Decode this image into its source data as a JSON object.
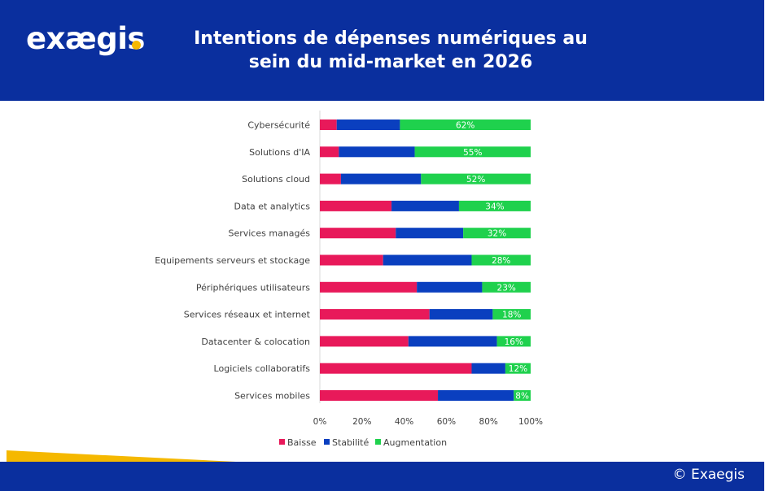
{
  "brand": {
    "logo_text": "exægis",
    "dot_color": "#f5b800"
  },
  "header": {
    "title_line1": "Intentions de dépenses numériques au",
    "title_line2": "sein du mid-market en 2026",
    "bg_color": "#0a2f9e"
  },
  "footer": {
    "copyright": "© Exaegis"
  },
  "chart_data": {
    "type": "bar",
    "orientation": "horizontal",
    "stacked": "100%",
    "title": "Intentions de dépenses numériques au sein du mid-market en 2026",
    "categories": [
      "Cybersécurité",
      "Solutions d'IA",
      "Solutions cloud",
      "Data et analytics",
      "Services managés",
      "Equipements serveurs et stockage",
      "Périphériques utilisateurs",
      "Services réseaux et internet",
      "Datacenter & colocation",
      "Logiciels collaboratifs",
      "Services mobiles"
    ],
    "series": [
      {
        "name": "Baisse",
        "color": "#e8195a",
        "values": [
          8,
          9,
          10,
          34,
          36,
          30,
          46,
          52,
          42,
          72,
          56
        ]
      },
      {
        "name": "Stabilité",
        "color": "#0a3fbf",
        "values": [
          30,
          36,
          38,
          32,
          32,
          42,
          31,
          30,
          42,
          16,
          36
        ]
      },
      {
        "name": "Augmentation",
        "color": "#1fd14d",
        "values": [
          62,
          55,
          52,
          34,
          32,
          28,
          23,
          18,
          16,
          12,
          8
        ]
      }
    ],
    "data_labels": [
      "62%",
      "55%",
      "52%",
      "34%",
      "32%",
      "28%",
      "23%",
      "18%",
      "16%",
      "12%",
      "8%"
    ],
    "xlim": [
      0,
      100
    ],
    "x_ticks": [
      "0%",
      "20%",
      "40%",
      "60%",
      "80%",
      "100%"
    ],
    "legend": {
      "position": "bottom",
      "items": [
        "Baisse",
        "Stabilité",
        "Augmentation"
      ]
    },
    "grid": false
  }
}
